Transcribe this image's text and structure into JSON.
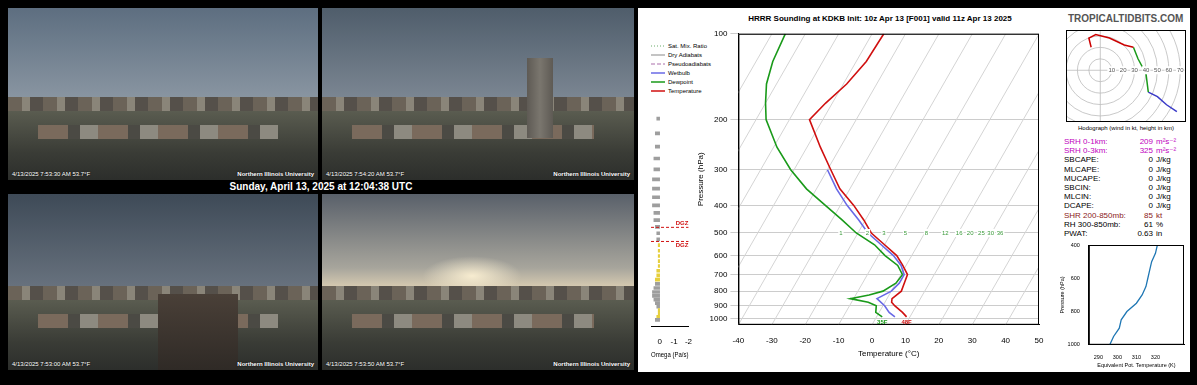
{
  "header": {
    "site": "TROPICALTIDBITS.COM"
  },
  "banner": "Sunday, April 13, 2025 at 12:04:38 UTC",
  "photos": [
    {
      "caption": "4/13/2025 7:53:30 AM 53.7°F",
      "logo": "Northern Illinois University"
    },
    {
      "caption": "4/13/2025 7:54:20 AM 53.7°F",
      "logo": "Northern Illinois University"
    },
    {
      "caption": "4/13/2025 7:53:00 AM 53.7°F",
      "logo": "Northern Illinois University"
    },
    {
      "caption": "4/13/2025 7:53:50 AM 53.7°F",
      "logo": "Northern Illinois University"
    }
  ],
  "chart_data": [
    {
      "type": "skew-t",
      "title": "HRRR Sounding at KDKB Init: 10z Apr 13 [F001] valid 11z Apr 13 2025",
      "x_label": "Temperature (°C)",
      "y_label": "Pressure (hPa)",
      "xlim": [
        -40,
        50
      ],
      "xticks": [
        -40,
        -30,
        -20,
        -10,
        0,
        10,
        20,
        30,
        40,
        50
      ],
      "ylim": [
        1050,
        100
      ],
      "yticks": [
        100,
        200,
        300,
        400,
        500,
        600,
        700,
        800,
        900,
        1000
      ],
      "log": "y",
      "grid": true,
      "legend": "upper left",
      "series": [
        {
          "name": "Sat. Mix. Ratio",
          "color": "#9cc79c",
          "line_style": "dotted",
          "x": [],
          "y": []
        },
        {
          "name": "Dry Adiabats",
          "color": "#b0b0b0",
          "line_style": "solid",
          "x": [],
          "y": []
        },
        {
          "name": "Pseudoadiabats",
          "color": "#c8a0c8",
          "line_style": "dashed",
          "x": [],
          "y": []
        },
        {
          "name": "Wetbulb",
          "color": "#6a6ae6",
          "line_style": "solid",
          "x": [
            5.5,
            3,
            0.5,
            -3,
            0,
            1,
            1,
            -1.5,
            -5.5,
            -11,
            -17,
            -22,
            -28,
            -34,
            -40
          ],
          "y": [
            985,
            950,
            900,
            850,
            800,
            750,
            700,
            650,
            600,
            550,
            500,
            450,
            400,
            350,
            300
          ]
        },
        {
          "name": "Dewpoint",
          "color": "#1a9a1a",
          "line_style": "solid",
          "x": [
            1.7,
            -1,
            -2,
            -5,
            -11,
            -6,
            -2.5,
            0,
            0.5,
            -2.5,
            -8,
            -13,
            -20.5,
            -27,
            -34.5,
            -43,
            -51,
            -59,
            -67,
            -70,
            -73,
            -75,
            -76
          ],
          "y": [
            985,
            950,
            900,
            875,
            850,
            825,
            800,
            750,
            700,
            650,
            600,
            550,
            500,
            450,
            400,
            350,
            300,
            250,
            200,
            175,
            150,
            125,
            100
          ]
        },
        {
          "name": "Temperature",
          "color": "#d01010",
          "line_style": "solid",
          "x": [
            9,
            7,
            3.5,
            2,
            1.5,
            3,
            2.5,
            2,
            -1,
            -4.5,
            -10,
            -16,
            -20.5,
            -26,
            -33,
            -39,
            -46,
            -54,
            -52,
            -49,
            -47,
            -46.5
          ],
          "y": [
            985,
            950,
            900,
            875,
            850,
            800,
            750,
            700,
            650,
            600,
            550,
            500,
            450,
            400,
            350,
            300,
            250,
            200,
            175,
            150,
            125,
            100
          ]
        }
      ],
      "surface_labels": [
        {
          "series": "Dewpoint",
          "label": "35F"
        },
        {
          "series": "Temperature",
          "label": "48F"
        }
      ],
      "mixing_ratio_labels": {
        "pressure": 500,
        "values": [
          1,
          2,
          3,
          5,
          8,
          12,
          16,
          20,
          25,
          30,
          36
        ]
      }
    },
    {
      "type": "bar",
      "orientation": "horizontal",
      "x_label": "Omega (Pa/s)",
      "xlim": [
        0.6,
        -2
      ],
      "xticks": [
        0,
        -1,
        -2
      ],
      "ylim": [
        1050,
        100
      ],
      "log": "y",
      "tick_labels": "x",
      "grid": false,
      "y": [
        200,
        225,
        250,
        275,
        300,
        325,
        350,
        375,
        400,
        425,
        450,
        475,
        500,
        525,
        550,
        575,
        600,
        625,
        650,
        675,
        700,
        725,
        750,
        775,
        800,
        825,
        850,
        875,
        900,
        925,
        950,
        975,
        1000
      ],
      "values": [
        0.2,
        0.3,
        0.3,
        0.4,
        0.4,
        0.5,
        0.5,
        0.5,
        0.5,
        0.4,
        0.4,
        0.3,
        0.2,
        0.2,
        0.1,
        0.1,
        0.1,
        0.1,
        0.1,
        0.2,
        0.2,
        0.3,
        0.3,
        0.4,
        0.5,
        0.5,
        0.4,
        0.3,
        0.2,
        0.1,
        0.1,
        0.2,
        0.3
      ],
      "colors": [
        "#9e9e9e",
        "#9e9e9e",
        "#9e9e9e",
        "#9e9e9e",
        "#9e9e9e",
        "#9e9e9e",
        "#9e9e9e",
        "#9e9e9e",
        "#9e9e9e",
        "#9e9e9e",
        "#9e9e9e",
        "#9e9e9e",
        "#9e9e9e",
        "#9e9e9e",
        "#e6cf3c",
        "#e6cf3c",
        "#e6cf3c",
        "#e6cf3c",
        "#e6cf3c",
        "#e6cf3c",
        "#e6cf3c",
        "#e6cf3c",
        "#9e9e9e",
        "#9e9e9e",
        "#9e9e9e",
        "#9e9e9e",
        "#9e9e9e",
        "#9e9e9e",
        "#9e9e9e",
        "#e6cf3c",
        "#e6cf3c",
        "#e6cf3c",
        "#9e9e9e"
      ],
      "dgz": {
        "label": "DGZ",
        "pressures": [
          477,
          534
        ]
      }
    },
    {
      "type": "hodograph",
      "title": "Hodograph (wind in kt, height in km)",
      "xlim": [
        -30,
        75
      ],
      "ylim": [
        -45,
        35
      ],
      "tick_labels": false,
      "grid": false,
      "rings": [
        10,
        20,
        30,
        40,
        50,
        60,
        70
      ],
      "series": [
        {
          "color": "#cc0000",
          "x": [
            -8,
            -10,
            -4,
            8,
            21,
            29
          ],
          "y": [
            20,
            28,
            31,
            28,
            22,
            20
          ]
        },
        {
          "color": "#1a9a1a",
          "x": [
            29,
            33,
            40,
            42
          ],
          "y": [
            20,
            10,
            -3,
            -19
          ]
        },
        {
          "color": "#3b3bc8",
          "x": [
            42,
            50,
            58,
            67
          ],
          "y": [
            -19,
            -23,
            -30,
            -36
          ]
        }
      ]
    },
    {
      "type": "line",
      "x_label": "Equivalent Pot. Temperature (K)",
      "y_label": "Pressure (hPa)",
      "xlim": [
        285,
        335
      ],
      "xticks": [
        290,
        300,
        310,
        320
      ],
      "ylim": [
        1000,
        400
      ],
      "yticks": [
        400,
        600,
        800,
        1000
      ],
      "grid": false,
      "color": "#1f77b4",
      "x": [
        296,
        298,
        301,
        302,
        305,
        310,
        313,
        315,
        316,
        317,
        318,
        320,
        321
      ],
      "y": [
        1000,
        950,
        900,
        850,
        800,
        750,
        700,
        650,
        600,
        550,
        500,
        450,
        400
      ]
    }
  ],
  "stats": [
    {
      "label": "SRH 0-1km:",
      "value": 209,
      "unit": "m²s⁻²",
      "color": "#c000c0"
    },
    {
      "label": "SRH 0-3km:",
      "value": 325,
      "unit": "m²s⁻²",
      "color": "#c000c0"
    },
    {
      "label": "SBCAPE:",
      "value": 0,
      "unit": "J/kg",
      "color": "#000000"
    },
    {
      "label": "MLCAPE:",
      "value": 0,
      "unit": "J/kg",
      "color": "#000000"
    },
    {
      "label": "MUCAPE:",
      "value": 0,
      "unit": "J/kg",
      "color": "#000000"
    },
    {
      "label": "SBCIN:",
      "value": 0,
      "unit": "J/kg",
      "color": "#000000"
    },
    {
      "label": "MLCIN:",
      "value": 0,
      "unit": "J/kg",
      "color": "#000000"
    },
    {
      "label": "DCAPE:",
      "value": 0,
      "unit": "J/kg",
      "color": "#000000"
    },
    {
      "label": "SHR 200-850mb:",
      "value": 85,
      "unit": "kt",
      "color": "#8b1a1a"
    },
    {
      "label": "RH 300-850mb:",
      "value": 61,
      "unit": "%",
      "color": "#000000"
    },
    {
      "label": "PWAT:",
      "value": 0.63,
      "unit": "in",
      "color": "#000000"
    }
  ]
}
